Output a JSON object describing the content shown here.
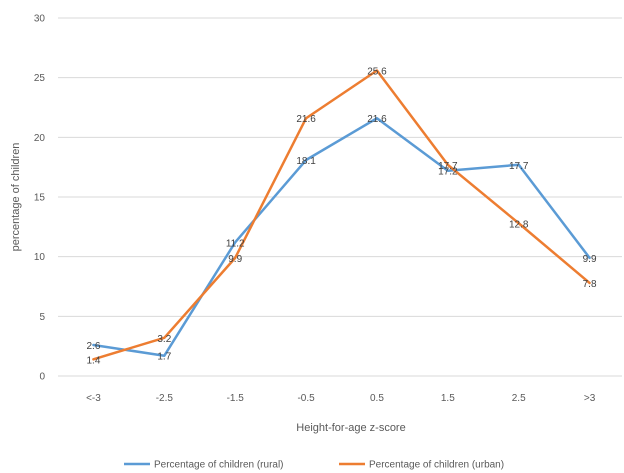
{
  "chart_data": {
    "type": "line",
    "title": "",
    "xlabel": "Height-for-age z-score",
    "ylabel": "percentage of children",
    "categories": [
      "<-3",
      "-2.5",
      "-1.5",
      "-0.5",
      "0.5",
      "1.5",
      "2.5",
      ">3"
    ],
    "ylim": [
      0,
      30
    ],
    "yticks": [
      0,
      5,
      10,
      15,
      20,
      25,
      30
    ],
    "grid": true,
    "legend": "bottom",
    "series": [
      {
        "name": "Percentage of children (rural)",
        "color": "#5B9BD5",
        "values": [
          2.6,
          1.7,
          11.2,
          18.1,
          21.6,
          17.2,
          17.7,
          9.9
        ],
        "labels": [
          "2.6",
          "1.7",
          "11.2",
          "18.1",
          "21.6",
          "17.2",
          "17.7",
          "9.9"
        ]
      },
      {
        "name": "Percentage of children (urban)",
        "color": "#ED7D31",
        "values": [
          1.4,
          3.2,
          9.9,
          21.6,
          25.6,
          17.7,
          12.8,
          7.8
        ],
        "labels": [
          "1.4",
          "3.2",
          "9.9",
          "21.6",
          "25.6",
          "17.7",
          "12.8",
          "7.8"
        ]
      }
    ]
  }
}
